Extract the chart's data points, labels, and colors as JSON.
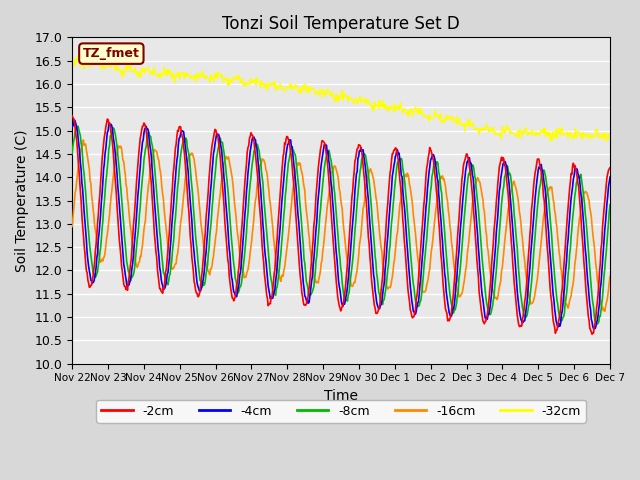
{
  "title": "Tonzi Soil Temperature Set D",
  "xlabel": "Time",
  "ylabel": "Soil Temperature (C)",
  "ylim": [
    10.0,
    17.0
  ],
  "yticks": [
    10.0,
    10.5,
    11.0,
    11.5,
    12.0,
    12.5,
    13.0,
    13.5,
    14.0,
    14.5,
    15.0,
    15.5,
    16.0,
    16.5,
    17.0
  ],
  "bg_color": "#d8d8d8",
  "plot_bg_color": "#e8e8e8",
  "line_colors": {
    "-2cm": "#ff0000",
    "-4cm": "#0000ff",
    "-8cm": "#00bb00",
    "-16cm": "#ff8800",
    "-32cm": "#ffff00"
  },
  "legend_labels": [
    "-2cm",
    "-4cm",
    "-8cm",
    "-16cm",
    "-32cm"
  ],
  "annotation_text": "TZ_fmet",
  "annotation_color": "#800000",
  "annotation_bg": "#ffffcc",
  "xtick_labels": [
    "Nov 22",
    "Nov 23",
    "Nov 24",
    "Nov 25",
    "Nov 26",
    "Nov 27",
    "Nov 28",
    "Nov 29",
    "Nov 30",
    "Dec 1",
    "Dec 2",
    "Dec 3",
    "Dec 4",
    "Dec 5",
    "Dec 6",
    "Dec 7"
  ]
}
